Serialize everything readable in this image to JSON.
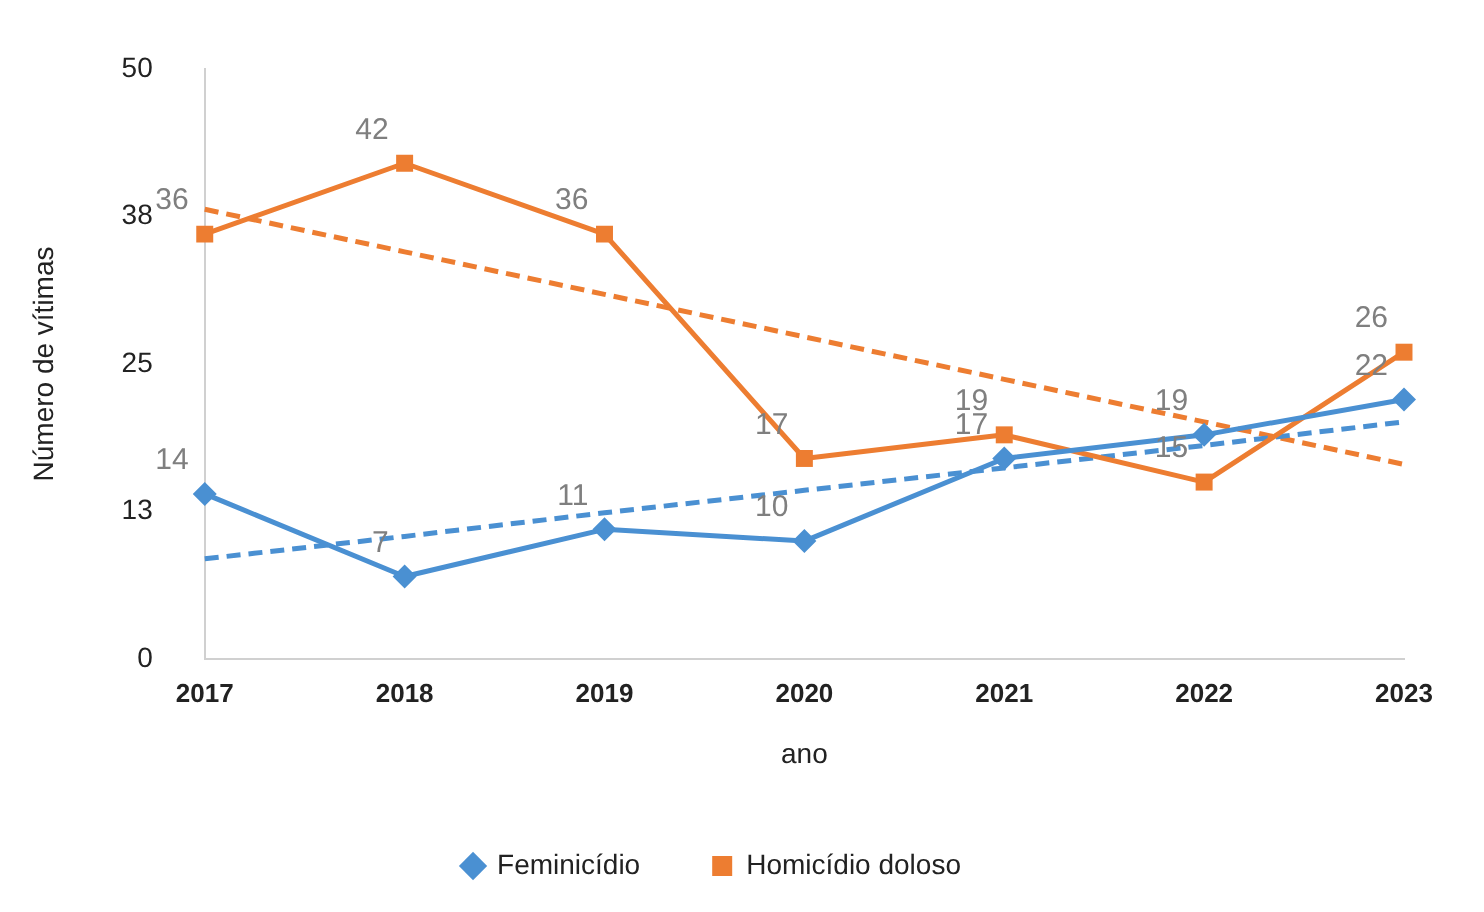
{
  "chart_data": {
    "type": "line",
    "xlabel": "ano",
    "ylabel": "Número de vítimas",
    "categories": [
      "2017",
      "2018",
      "2019",
      "2020",
      "2021",
      "2022",
      "2023"
    ],
    "series": [
      {
        "name": "Feminicídio",
        "color": "#4a90d2",
        "marker": "diamond",
        "values": [
          14,
          7,
          11,
          10,
          17,
          19,
          22
        ],
        "value_labels": [
          "14",
          "7",
          "11",
          "10",
          "17",
          "19",
          "22"
        ]
      },
      {
        "name": "Homicídio doloso",
        "color": "#ed7d31",
        "marker": "square",
        "values": [
          36,
          42,
          36,
          17,
          19,
          15,
          26
        ],
        "value_labels": [
          "36",
          "42",
          "36",
          "17",
          "19",
          "15",
          "26"
        ]
      },
      {
        "color": "#4a90d2",
        "marker": "none",
        "line_style": "dashed",
        "values": [
          8.5,
          10.4,
          12.4,
          14.3,
          16.2,
          18.1,
          20.1
        ]
      },
      {
        "color": "#ed7d31",
        "marker": "none",
        "line_style": "dashed",
        "values": [
          38.1,
          34.5,
          30.9,
          27.3,
          23.7,
          20.1,
          16.5
        ]
      }
    ],
    "ylim": [
      0,
      50
    ],
    "yticks": [
      0,
      {
        "value": 12.5,
        "label": "13"
      },
      25,
      {
        "value": 37.5,
        "label": "38"
      },
      50
    ],
    "grid": false,
    "legend": "bottom"
  }
}
